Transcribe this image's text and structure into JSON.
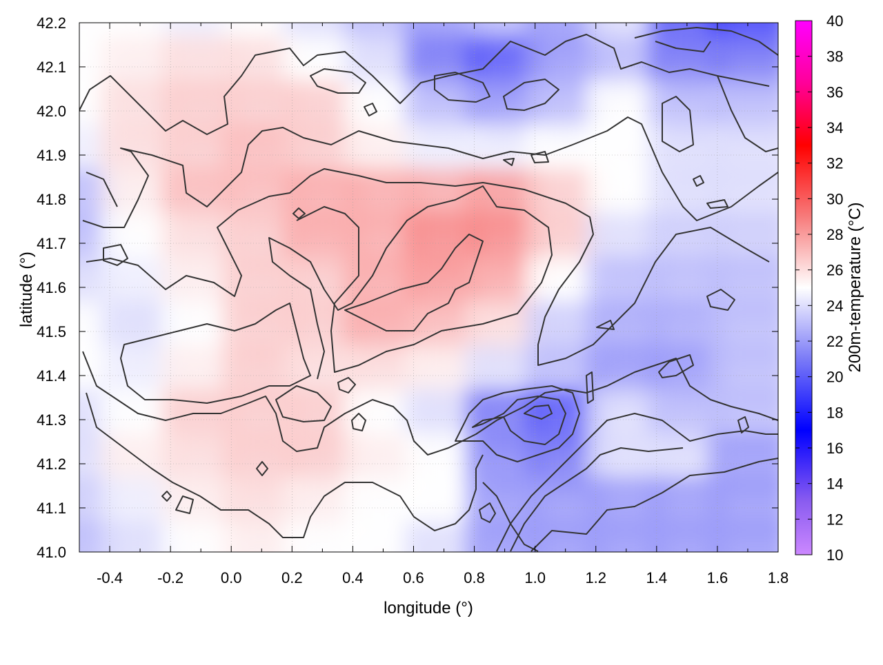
{
  "chart_data": {
    "type": "heatmap",
    "title": "",
    "xlabel": "longitude (°)",
    "ylabel": "latitude (°)",
    "xlim": [
      -0.5,
      1.8
    ],
    "ylim": [
      41.0,
      42.2
    ],
    "xticks": [
      "-0.4",
      "-0.2",
      "0.0",
      "0.2",
      "0.4",
      "0.6",
      "0.8",
      "1.0",
      "1.2",
      "1.4",
      "1.6",
      "1.8"
    ],
    "xtick_values": [
      -0.4,
      -0.2,
      0.0,
      0.2,
      0.4,
      0.6,
      0.8,
      1.0,
      1.2,
      1.4,
      1.6,
      1.8
    ],
    "yticks": [
      "41.0",
      "41.1",
      "41.2",
      "41.3",
      "41.4",
      "41.5",
      "41.6",
      "41.7",
      "41.8",
      "41.9",
      "42.0",
      "42.1",
      "42.2"
    ],
    "ytick_values": [
      41.0,
      41.1,
      41.2,
      41.3,
      41.4,
      41.5,
      41.6,
      41.7,
      41.8,
      41.9,
      42.0,
      42.1,
      42.2
    ],
    "grid": true,
    "colorbar": {
      "label": "200m-temperature (°C)",
      "range": [
        10,
        40
      ],
      "ticks": [
        "10",
        "12",
        "14",
        "16",
        "18",
        "20",
        "22",
        "24",
        "26",
        "28",
        "30",
        "32",
        "34",
        "36",
        "38",
        "40"
      ],
      "tick_values": [
        10,
        12,
        14,
        16,
        18,
        20,
        22,
        24,
        26,
        28,
        30,
        32,
        34,
        36,
        38,
        40
      ],
      "palette": [
        {
          "value": 10,
          "color": "#cc88ff"
        },
        {
          "value": 13,
          "color": "#8a5cf0"
        },
        {
          "value": 17,
          "color": "#0000ff"
        },
        {
          "value": 21,
          "color": "#7b7bf7"
        },
        {
          "value": 25,
          "color": "#ffffff"
        },
        {
          "value": 29,
          "color": "#f77b7b"
        },
        {
          "value": 33,
          "color": "#ff0000"
        },
        {
          "value": 36.5,
          "color": "#ff0099"
        },
        {
          "value": 40,
          "color": "#ff00ff"
        }
      ]
    },
    "contour_levels": [
      22,
      24,
      26,
      28
    ],
    "contour_color": "#333333",
    "temperature_field_samples": {
      "lon": [
        -0.5,
        -0.3,
        -0.1,
        0.1,
        0.3,
        0.5,
        0.7,
        0.9,
        1.1,
        1.3,
        1.5,
        1.7
      ],
      "lat": [
        42.2,
        42.1,
        42.0,
        41.9,
        41.8,
        41.7,
        41.6,
        41.5,
        41.4,
        41.3,
        41.2,
        41.1,
        41.0
      ],
      "values": [
        [
          25,
          25,
          24.5,
          25,
          24,
          23,
          22,
          23,
          22,
          24,
          20,
          19
        ],
        [
          25,
          25.5,
          26,
          26,
          25,
          24,
          21,
          20,
          22,
          23,
          21,
          21
        ],
        [
          25,
          26,
          26.5,
          26.5,
          26.5,
          25,
          23,
          22,
          23,
          25,
          23,
          23
        ],
        [
          24.5,
          26,
          26.5,
          27,
          26.5,
          25.5,
          24.5,
          24.5,
          25,
          25,
          24,
          24
        ],
        [
          23,
          25.5,
          27,
          27,
          27.5,
          27.5,
          27.5,
          28,
          26.5,
          25,
          24,
          24
        ],
        [
          23,
          25,
          26,
          26.5,
          27.5,
          27.5,
          28.5,
          28.5,
          26.5,
          24,
          23.5,
          23.5
        ],
        [
          24,
          24.5,
          25.5,
          26.5,
          26.5,
          27.5,
          28,
          27.5,
          25,
          23,
          23,
          23
        ],
        [
          25,
          24,
          25,
          26.5,
          26.5,
          27.5,
          27,
          26,
          23.5,
          22.5,
          22.5,
          23
        ],
        [
          25,
          24.5,
          25.5,
          26.5,
          26,
          26,
          25.5,
          24,
          23,
          22,
          22,
          23
        ],
        [
          24,
          25,
          26.5,
          26.5,
          26.5,
          25,
          24,
          21,
          20,
          24,
          23,
          23
        ],
        [
          24,
          25.5,
          26,
          26.5,
          26.5,
          25.5,
          25,
          21.5,
          21,
          24,
          24,
          22
        ],
        [
          23.5,
          24.5,
          25.5,
          26,
          25.5,
          25,
          25,
          22,
          22,
          22,
          22,
          22
        ],
        [
          23,
          24,
          25,
          25.5,
          25,
          25,
          24,
          22,
          22,
          22,
          22,
          22
        ]
      ]
    }
  }
}
